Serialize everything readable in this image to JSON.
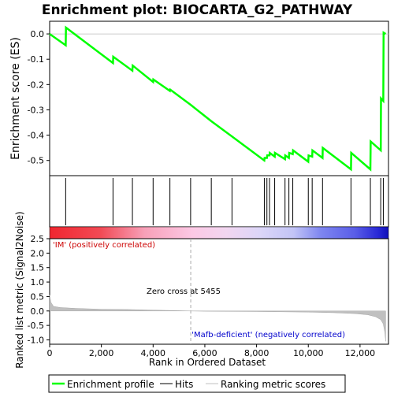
{
  "chart_data": {
    "type": "line",
    "title": "Enrichment plot: BIOCARTA_G2_PATHWAY",
    "top_panel": {
      "ylabel": "Enrichment score (ES)",
      "ylim": [
        -0.56,
        0.05
      ],
      "yticks": [
        0.0,
        -0.1,
        -0.2,
        -0.3,
        -0.4,
        -0.5
      ],
      "ytick_labels": [
        "0.0",
        "-0.1",
        "-0.2",
        "-0.3",
        "-0.4",
        "-0.5"
      ],
      "series_color": "#00ff00",
      "es_curve": {
        "x": [
          0,
          620,
          630,
          2450,
          2460,
          3200,
          3210,
          4000,
          4010,
          4650,
          4660,
          5450,
          6250,
          7050,
          8300,
          8310,
          8400,
          8410,
          8500,
          8510,
          8700,
          8710,
          9100,
          9110,
          9250,
          9260,
          9400,
          9410,
          10000,
          10010,
          10150,
          10160,
          10550,
          10560,
          11650,
          11660,
          12400,
          12410,
          12800,
          12810,
          12900,
          12910,
          12990
        ],
        "y": [
          0.0,
          -0.045,
          0.025,
          -0.115,
          -0.09,
          -0.145,
          -0.125,
          -0.19,
          -0.18,
          -0.225,
          -0.22,
          -0.28,
          -0.345,
          -0.405,
          -0.5,
          -0.49,
          -0.49,
          -0.48,
          -0.48,
          -0.47,
          -0.485,
          -0.47,
          -0.495,
          -0.48,
          -0.49,
          -0.47,
          -0.475,
          -0.46,
          -0.505,
          -0.48,
          -0.485,
          -0.46,
          -0.49,
          -0.45,
          -0.535,
          -0.47,
          -0.535,
          -0.425,
          -0.46,
          -0.255,
          -0.265,
          0.005,
          0.0
        ]
      }
    },
    "hits_panel": {
      "hit_positions": [
        620,
        2450,
        3200,
        4000,
        4650,
        5450,
        6250,
        7050,
        8300,
        8400,
        8500,
        8700,
        9100,
        9250,
        9400,
        10000,
        10150,
        10550,
        11650,
        12400,
        12800,
        12900
      ]
    },
    "bottom_panel": {
      "ylabel": "Ranked list metric (Signal2Noise)",
      "xlabel": "Rank in Ordered Dataset",
      "xlim": [
        0,
        13100
      ],
      "ylim": [
        -1.15,
        2.5
      ],
      "yticks": [
        -1.0,
        -0.5,
        0.0,
        0.5,
        1.0,
        1.5,
        2.0,
        2.5
      ],
      "ytick_labels": [
        "-1.0",
        "-0.5",
        "0.0",
        "0.5",
        "1.0",
        "1.5",
        "2.0",
        "2.5"
      ],
      "xticks": [
        0,
        2000,
        4000,
        6000,
        8000,
        10000,
        12000
      ],
      "xtick_labels": [
        "0",
        "2,000",
        "4,000",
        "6,000",
        "8,000",
        "10,000",
        "12,000"
      ],
      "metric": {
        "x": [
          0,
          50,
          150,
          400,
          1000,
          2000,
          3000,
          4000,
          5000,
          5455,
          6000,
          8000,
          10000,
          11000,
          11800,
          12300,
          12600,
          12800,
          12900,
          12960,
          12990
        ],
        "y": [
          0.55,
          0.3,
          0.16,
          0.12,
          0.09,
          0.06,
          0.05,
          0.03,
          0.01,
          0.0,
          -0.01,
          -0.02,
          -0.04,
          -0.06,
          -0.09,
          -0.13,
          -0.2,
          -0.3,
          -0.45,
          -0.75,
          -1.05
        ]
      },
      "zero_cross_label": "Zero cross at 5455",
      "zero_cross_rank": 5455,
      "positive_label": "'IM' (positively correlated)",
      "negative_label": "'Mafb-deficient' (negatively correlated)"
    },
    "legend": {
      "items": [
        "Enrichment profile",
        "Hits",
        "Ranking metric scores"
      ]
    },
    "colors": {
      "es_line": "#00ff00",
      "hits": "#000000",
      "metric_fill": "#c0c0c0",
      "positive_label": "#cc0000",
      "negative_label": "#0000cc"
    }
  }
}
